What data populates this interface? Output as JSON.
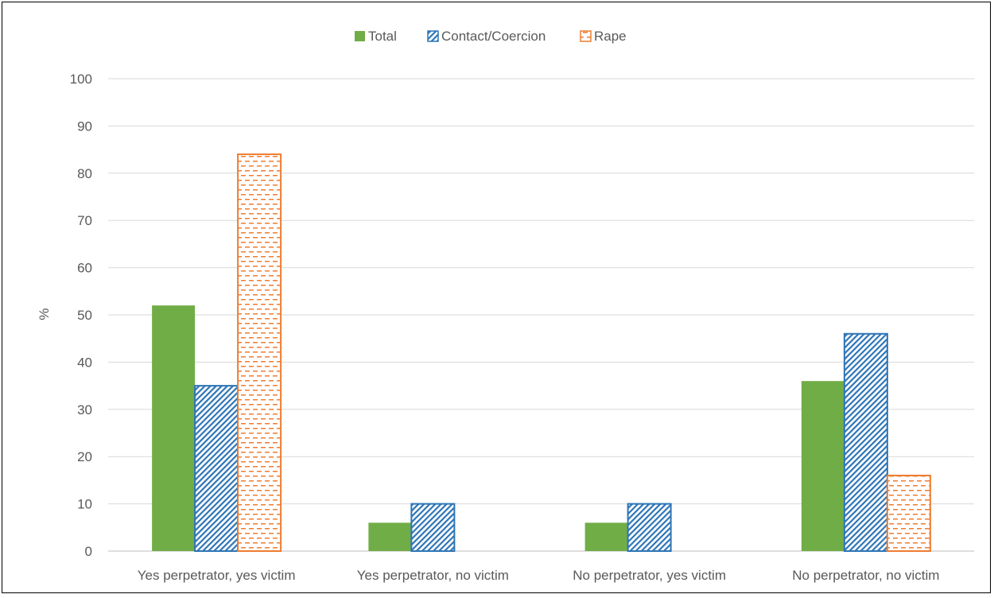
{
  "chart_data": {
    "type": "bar",
    "title": "",
    "xlabel": "",
    "ylabel": "%",
    "ylim": [
      0,
      100
    ],
    "yticks": [
      0,
      10,
      20,
      30,
      40,
      50,
      60,
      70,
      80,
      90,
      100
    ],
    "grid": true,
    "legend_position": "top",
    "categories": [
      "Yes perpetrator, yes victim",
      "Yes perpetrator, no victim",
      "No perpetrator, yes victim",
      "No perpetrator, no victim"
    ],
    "series": [
      {
        "name": "Total",
        "values": [
          52,
          6,
          6,
          36
        ],
        "color": "#70ad47",
        "pattern": "solid"
      },
      {
        "name": "Contact/Coercion",
        "values": [
          35,
          10,
          10,
          46
        ],
        "color": "#2e75b6",
        "pattern": "diagonal-hatch"
      },
      {
        "name": "Rape",
        "values": [
          84,
          0,
          0,
          16
        ],
        "color": "#ed7d31",
        "pattern": "dashes"
      }
    ]
  }
}
